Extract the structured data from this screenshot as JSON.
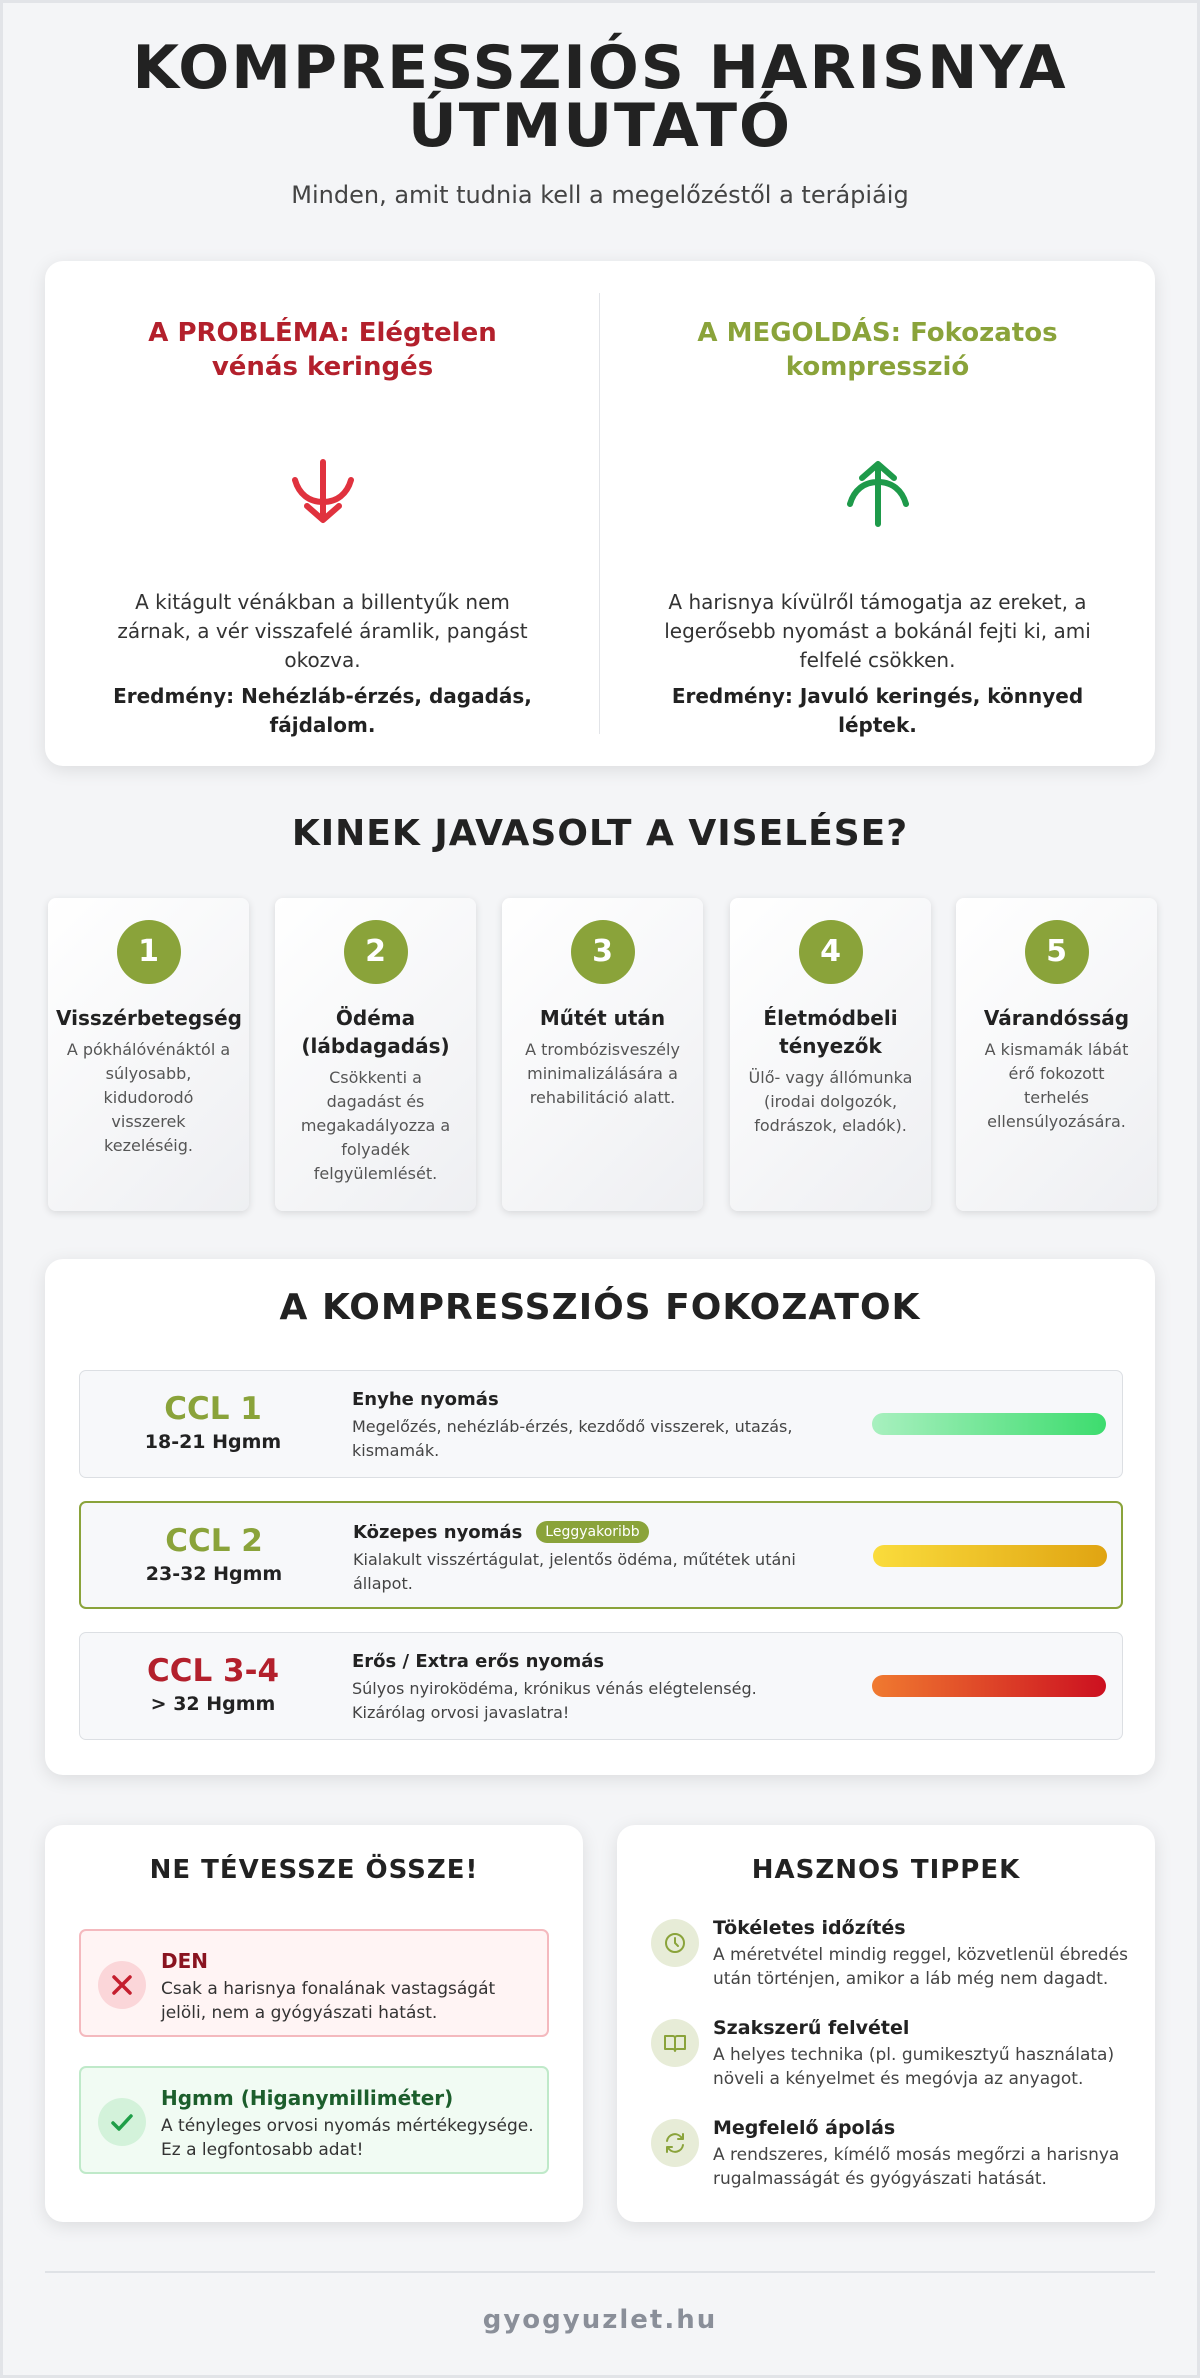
{
  "header": {
    "title": "KOMPRESSZIÓS HARISNYA ÚTMUTATÓ",
    "subtitle": "Minden, amit tudnia kell a megelőzéstől a terápiáig"
  },
  "comparison": [
    {
      "title": "A PROBLÉMA: Elégtelen vénás keringés",
      "text": "A kitágult vénákban a billentyűk nem zárnak, a vér visszafelé áramlik, pangást okozva.",
      "result": "Eredmény: Nehézláb-érzés, dagadás, fájdalom."
    },
    {
      "title": "A MEGOLDÁS: Fokozatos kompresszió",
      "text": "A harisnya kívülről támogatja az ereket, a legerősebb nyomást a bokánál fejti ki, ami felfelé csökken.",
      "result": "Eredmény: Javuló keringés, könnyed léptek."
    }
  ],
  "audience": {
    "title": "KINEK JAVASOLT A VISELÉSE?",
    "items": [
      {
        "number": "1",
        "title": "Visszérbetegség",
        "text": "A pókhálóvénáktól a súlyosabb, kidudorodó visszerek kezeléséig."
      },
      {
        "number": "2",
        "title": "Ödéma (lábdagadás)",
        "text": "Csökkenti a dagadást és megakadályozza a folyadék felgyülemlését."
      },
      {
        "number": "3",
        "title": "Műtét után",
        "text": "A trombózisveszély minimalizálására a rehabilitáció alatt."
      },
      {
        "number": "4",
        "title": "Életmódbeli tényezők",
        "text": "Ülő- vagy állómunka (irodai dolgozók, fodrászok, eladók)."
      },
      {
        "number": "5",
        "title": "Várandósság",
        "text": "A kismamák lábát érő fokozott terhelés ellensúlyozására."
      }
    ]
  },
  "grades": {
    "title": "A KOMPRESSZIÓS FOKOZATOK",
    "rows": [
      {
        "name": "CCL 1",
        "pressure": "18-21 Hgmm",
        "title": "Enyhe nyomás",
        "text": "Megelőzés, nehézláb-érzés, kezdődő visszerek, utazás, kismamák."
      },
      {
        "name": "CCL 2",
        "pressure": "23-32 Hgmm",
        "title": "Közepes nyomás",
        "badge": "Leggyakoribb",
        "text": "Kialakult visszértágulat, jelentős ödéma, műtétek utáni állapot."
      },
      {
        "name": "CCL 3-4",
        "pressure": "> 32 Hgmm",
        "title": "Erős / Extra erős nyomás",
        "text": "Súlyos nyiroködéma, krónikus vénás elégtelenség. Kizárólag orvosi javaslatra!"
      }
    ]
  },
  "confusion": {
    "title": "NE TÉVESSZE ÖSSZE!",
    "items": [
      {
        "title": "DEN",
        "text": "Csak a harisnya fonalának vastagságát jelöli, nem a gyógyászati hatást."
      },
      {
        "title": "Hgmm (Higanymilliméter)",
        "text": "A tényleges orvosi nyomás mértékegysége. Ez a legfontosabb adat!"
      }
    ]
  },
  "tips": {
    "title": "HASZNOS TIPPEK",
    "items": [
      {
        "title": "Tökéletes időzítés",
        "text": "A méretvétel mindig reggel, közvetlenül ébredés után történjen, amikor a láb még nem dagadt."
      },
      {
        "title": "Szakszerű felvétel",
        "text": "A helyes technika (pl. gumikesztyű használata) növeli a kényelmet és megóvja az anyagot."
      },
      {
        "title": "Megfelelő ápolás",
        "text": "A rendszeres, kímélő mosás megőrzi a harisnya rugalmasságát és gyógyászati hatását."
      }
    ]
  },
  "footer": "gyogyuzlet.hu"
}
